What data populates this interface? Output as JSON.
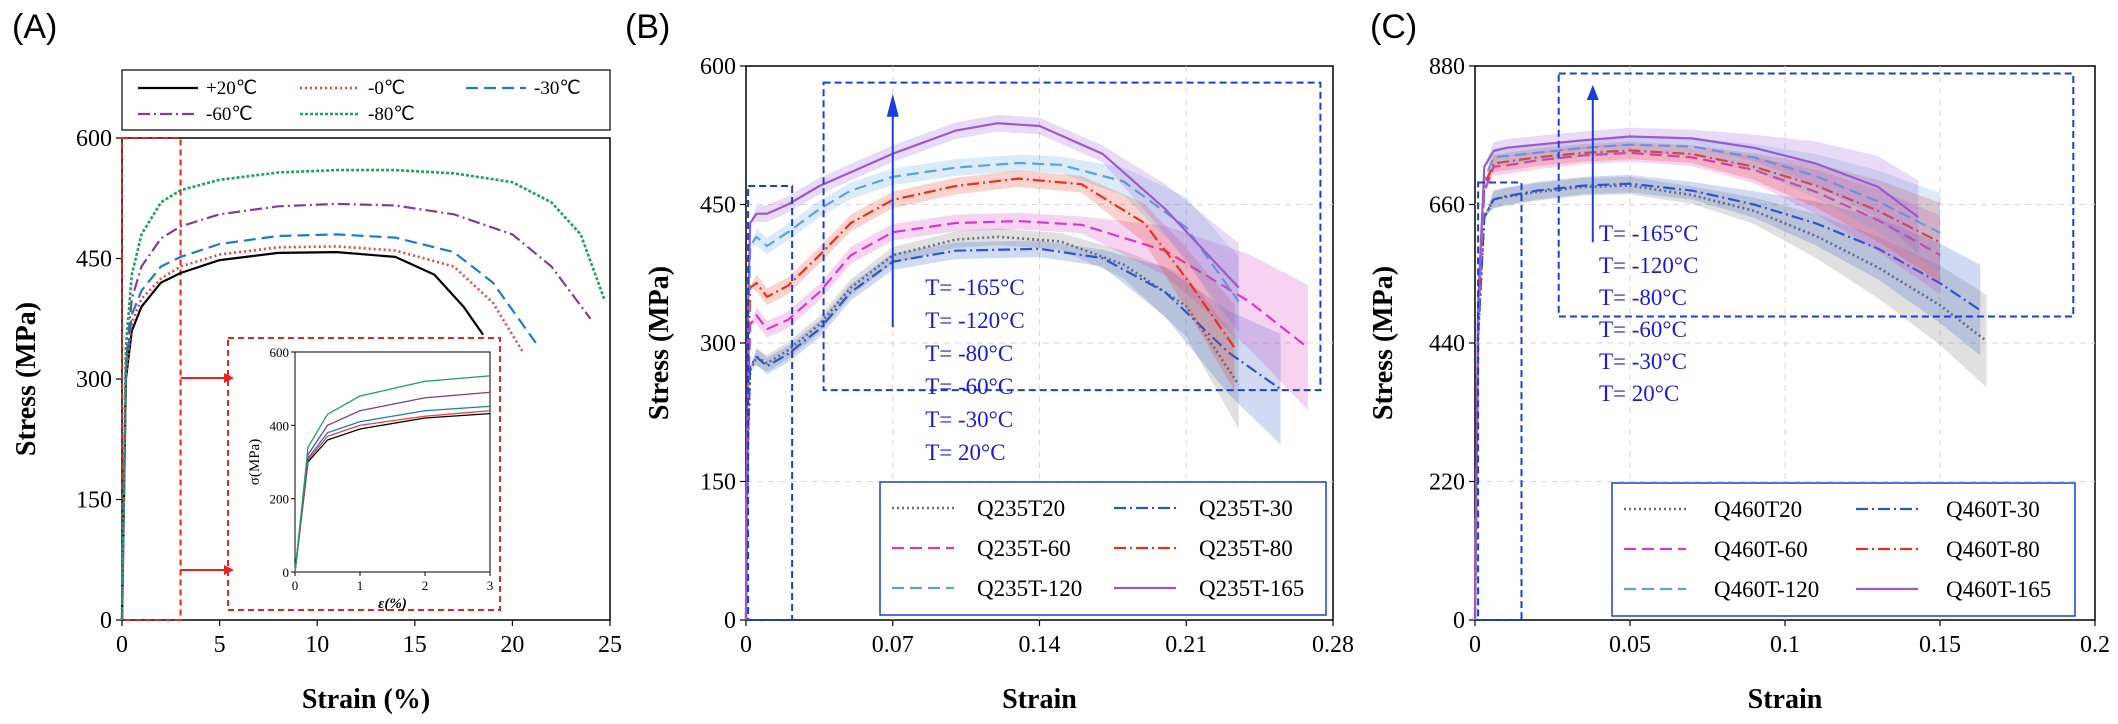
{
  "chart_data": [
    {
      "panel": "(A)",
      "type": "line",
      "xlabel": "Strain (%)",
      "ylabel": "Stress (MPa)",
      "xlim": [
        0,
        25
      ],
      "ylim": [
        0,
        600
      ],
      "x_ticks": [
        "0",
        "5",
        "10",
        "15",
        "20",
        "25"
      ],
      "y_ticks": [
        "0",
        "150",
        "300",
        "450",
        "600"
      ],
      "legend_position": "top",
      "series": [
        {
          "name": "+20℃",
          "color": "#000000",
          "dash": "solid",
          "x": [
            0,
            0.2,
            0.5,
            1,
            2,
            3,
            5,
            8,
            11,
            14,
            16,
            17.5,
            18.5
          ],
          "y": [
            0,
            300,
            360,
            390,
            420,
            432,
            448,
            457,
            458,
            452,
            430,
            390,
            355
          ]
        },
        {
          "name": "-0℃",
          "color": "#e8453c",
          "dash": "dot",
          "x": [
            0,
            0.2,
            0.5,
            1,
            2,
            3,
            5,
            8,
            11,
            14,
            17,
            19,
            20.5
          ],
          "y": [
            0,
            305,
            370,
            400,
            425,
            440,
            455,
            464,
            465,
            460,
            440,
            395,
            335
          ]
        },
        {
          "name": "-30℃",
          "color": "#1e7ccc",
          "dash": "dash",
          "x": [
            0,
            0.2,
            0.5,
            1,
            2,
            3,
            5,
            8,
            11,
            14,
            17,
            19,
            21.2
          ],
          "y": [
            0,
            310,
            380,
            410,
            440,
            452,
            468,
            478,
            480,
            476,
            458,
            420,
            345
          ]
        },
        {
          "name": "-60℃",
          "color": "#7b3f9e",
          "dash": "dashdot",
          "x": [
            0,
            0.2,
            0.5,
            1,
            2,
            3,
            5,
            8,
            11,
            14,
            17,
            20,
            22,
            24
          ],
          "y": [
            0,
            320,
            400,
            440,
            475,
            490,
            505,
            515,
            518,
            516,
            505,
            480,
            440,
            375
          ]
        },
        {
          "name": "-80℃",
          "color": "#22a05a",
          "dash": "dense-dot",
          "x": [
            0,
            0.2,
            0.5,
            1,
            2,
            3,
            5,
            8,
            11,
            14,
            17,
            20,
            22,
            23.5,
            24.7
          ],
          "y": [
            0,
            340,
            430,
            480,
            520,
            535,
            548,
            557,
            560,
            560,
            556,
            545,
            520,
            480,
            400
          ]
        }
      ],
      "inset": {
        "xlabel": "ε(%)",
        "ylabel": "σ(MPa)",
        "xlim": [
          0,
          3
        ],
        "ylim": [
          0,
          600
        ],
        "x_ticks": [
          "0",
          "1",
          "2",
          "3"
        ],
        "y_ticks": [
          "0",
          "200",
          "400",
          "600"
        ]
      }
    },
    {
      "panel": "(B)",
      "type": "line",
      "xlabel": "Strain",
      "ylabel": "Stress (MPa)",
      "xlim": [
        0,
        0.28
      ],
      "ylim": [
        0,
        600
      ],
      "x_ticks": [
        "0",
        "0.07",
        "0.14",
        "0.21",
        "0.28"
      ],
      "y_ticks": [
        "0",
        "150",
        "300",
        "450",
        "600"
      ],
      "legend_position": "bottom-right",
      "temperature_labels": [
        "T= -165°C",
        "T= -120°C",
        "T= -80°C",
        "T= -60°C",
        "T= -30°C",
        "T= 20°C"
      ],
      "series": [
        {
          "name": "Q235T20",
          "color": "#707070",
          "dash": "dot",
          "x": [
            0,
            0.001,
            0.002,
            0.005,
            0.01,
            0.02,
            0.035,
            0.05,
            0.07,
            0.1,
            0.12,
            0.15,
            0.18,
            0.21,
            0.235
          ],
          "y": [
            0,
            200,
            270,
            285,
            278,
            292,
            320,
            360,
            395,
            412,
            415,
            410,
            385,
            340,
            255
          ]
        },
        {
          "name": "Q235T-30",
          "color": "#2b55c9",
          "dash": "dashdot",
          "x": [
            0,
            0.001,
            0.002,
            0.005,
            0.01,
            0.02,
            0.035,
            0.05,
            0.07,
            0.1,
            0.14,
            0.17,
            0.2,
            0.23,
            0.255
          ],
          "y": [
            0,
            200,
            275,
            285,
            275,
            288,
            315,
            355,
            388,
            400,
            402,
            392,
            355,
            290,
            250
          ]
        },
        {
          "name": "Q235T-60",
          "color": "#d63cc0",
          "dash": "dash",
          "x": [
            0,
            0.001,
            0.002,
            0.005,
            0.01,
            0.02,
            0.035,
            0.05,
            0.07,
            0.1,
            0.13,
            0.16,
            0.2,
            0.24,
            0.268
          ],
          "y": [
            0,
            240,
            320,
            330,
            315,
            325,
            355,
            395,
            420,
            430,
            432,
            428,
            400,
            345,
            295
          ]
        },
        {
          "name": "Q235T-80",
          "color": "#e8311e",
          "dash": "dashdot",
          "x": [
            0,
            0.001,
            0.002,
            0.005,
            0.01,
            0.02,
            0.035,
            0.05,
            0.07,
            0.1,
            0.13,
            0.16,
            0.19,
            0.21,
            0.233
          ],
          "y": [
            0,
            270,
            360,
            365,
            350,
            362,
            395,
            430,
            455,
            470,
            478,
            472,
            430,
            370,
            295
          ]
        },
        {
          "name": "Q235T-120",
          "color": "#5aa3dc",
          "dash": "dash",
          "x": [
            0,
            0.001,
            0.002,
            0.005,
            0.01,
            0.02,
            0.035,
            0.05,
            0.07,
            0.1,
            0.13,
            0.15,
            0.18,
            0.21,
            0.235
          ],
          "y": [
            0,
            300,
            405,
            415,
            405,
            420,
            445,
            465,
            480,
            490,
            495,
            493,
            475,
            425,
            345
          ]
        },
        {
          "name": "Q235T-165",
          "color": "#9b59d0",
          "dash": "solid",
          "x": [
            0,
            0.001,
            0.002,
            0.005,
            0.01,
            0.02,
            0.035,
            0.05,
            0.07,
            0.1,
            0.12,
            0.14,
            0.17,
            0.2,
            0.235
          ],
          "y": [
            0,
            340,
            430,
            440,
            440,
            450,
            470,
            485,
            505,
            530,
            538,
            535,
            505,
            445,
            360
          ]
        }
      ]
    },
    {
      "panel": "(C)",
      "type": "line",
      "xlabel": "Strain",
      "ylabel": "Stress (MPa)",
      "xlim": [
        0,
        0.2
      ],
      "ylim": [
        0,
        880
      ],
      "x_ticks": [
        "0",
        "0.05",
        "0.1",
        "0.15",
        "0.2"
      ],
      "y_ticks": [
        "0",
        "220",
        "440",
        "660",
        "880"
      ],
      "legend_position": "bottom-right",
      "temperature_labels": [
        "T= -165°C",
        "T= -120°C",
        "T= -80°C",
        "T= -60°C",
        "T= -30°C",
        "T= 20°C"
      ],
      "series": [
        {
          "name": "Q460T20",
          "color": "#707070",
          "dash": "dot",
          "x": [
            0,
            0.001,
            0.003,
            0.006,
            0.01,
            0.02,
            0.035,
            0.05,
            0.07,
            0.09,
            0.11,
            0.13,
            0.15,
            0.165
          ],
          "y": [
            0,
            450,
            640,
            668,
            672,
            680,
            688,
            690,
            675,
            650,
            610,
            560,
            500,
            443
          ]
        },
        {
          "name": "Q460T-30",
          "color": "#2b55c9",
          "dash": "dashdot",
          "x": [
            0,
            0.001,
            0.003,
            0.006,
            0.01,
            0.02,
            0.035,
            0.05,
            0.07,
            0.09,
            0.11,
            0.13,
            0.15,
            0.163
          ],
          "y": [
            0,
            450,
            640,
            668,
            673,
            682,
            690,
            693,
            682,
            660,
            630,
            590,
            535,
            492
          ]
        },
        {
          "name": "Q460T-60",
          "color": "#d63cc0",
          "dash": "dash",
          "x": [
            0,
            0.001,
            0.003,
            0.006,
            0.01,
            0.02,
            0.035,
            0.05,
            0.07,
            0.09,
            0.11,
            0.13,
            0.15
          ],
          "y": [
            0,
            470,
            680,
            720,
            722,
            730,
            738,
            742,
            735,
            715,
            680,
            635,
            580
          ]
        },
        {
          "name": "Q460T-80",
          "color": "#e8311e",
          "dash": "dashdot",
          "x": [
            0,
            0.001,
            0.003,
            0.006,
            0.01,
            0.02,
            0.035,
            0.05,
            0.07,
            0.09,
            0.11,
            0.13,
            0.15
          ],
          "y": [
            0,
            480,
            690,
            725,
            728,
            735,
            742,
            746,
            740,
            720,
            690,
            650,
            600
          ]
        },
        {
          "name": "Q460T-120",
          "color": "#5aa3dc",
          "dash": "dash",
          "x": [
            0,
            0.001,
            0.003,
            0.006,
            0.01,
            0.02,
            0.035,
            0.05,
            0.07,
            0.09,
            0.11,
            0.13,
            0.15
          ],
          "y": [
            0,
            490,
            700,
            735,
            737,
            742,
            750,
            755,
            752,
            735,
            705,
            665,
            615
          ]
        },
        {
          "name": "Q460T-165",
          "color": "#9b59d0",
          "dash": "solid",
          "x": [
            0,
            0.001,
            0.003,
            0.006,
            0.01,
            0.02,
            0.035,
            0.05,
            0.07,
            0.09,
            0.11,
            0.13,
            0.143
          ],
          "y": [
            0,
            500,
            720,
            745,
            750,
            755,
            762,
            768,
            765,
            750,
            725,
            688,
            640
          ]
        }
      ]
    }
  ]
}
